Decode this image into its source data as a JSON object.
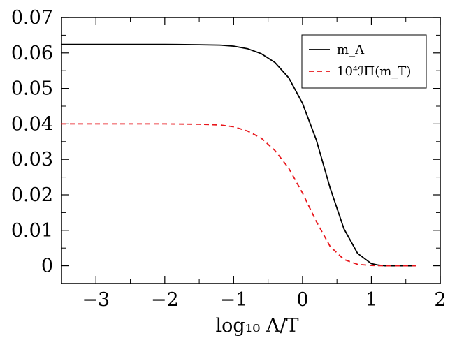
{
  "chart_data": {
    "type": "line",
    "xlabel": "log₁₀ Λ/T",
    "ylabel": "",
    "xlim": [
      -3.5,
      2
    ],
    "ylim": [
      -0.005,
      0.07
    ],
    "xticks": [
      -3,
      -2,
      -1,
      0,
      1,
      2
    ],
    "xtick_labels": [
      "−3",
      "−2",
      "−1",
      "0",
      "1",
      "2"
    ],
    "yticks": [
      0,
      0.01,
      0.02,
      0.03,
      0.04,
      0.05,
      0.06,
      0.07
    ],
    "ytick_labels": [
      "0",
      "0.01",
      "0.02",
      "0.03",
      "0.04",
      "0.05",
      "0.06",
      "0.07"
    ],
    "legend_position": "top-right",
    "series": [
      {
        "name": "m_Λ",
        "color": "#000000",
        "dash": "solid",
        "x": [
          -3.5,
          -3.0,
          -2.5,
          -2.0,
          -1.5,
          -1.2,
          -1.0,
          -0.8,
          -0.6,
          -0.4,
          -0.2,
          0.0,
          0.2,
          0.4,
          0.6,
          0.8,
          1.0,
          1.1,
          1.2,
          1.4,
          1.65
        ],
        "y": [
          0.0624,
          0.0624,
          0.0624,
          0.0624,
          0.0623,
          0.0622,
          0.0619,
          0.0612,
          0.0598,
          0.0573,
          0.053,
          0.0458,
          0.0355,
          0.022,
          0.0105,
          0.0035,
          0.0006,
          0.0002,
          0.0,
          0.0,
          0.0
        ]
      },
      {
        "name": "10⁴ℐΠ̄(m_T)",
        "color": "#e8171c",
        "dash": "dashed",
        "x": [
          -3.5,
          -3.0,
          -2.5,
          -2.0,
          -1.5,
          -1.2,
          -1.0,
          -0.8,
          -0.6,
          -0.4,
          -0.2,
          0.0,
          0.2,
          0.4,
          0.6,
          0.8,
          1.0,
          1.2,
          1.4,
          1.65
        ],
        "y": [
          0.04,
          0.04,
          0.04,
          0.04,
          0.0399,
          0.0397,
          0.0392,
          0.038,
          0.036,
          0.0325,
          0.0275,
          0.0205,
          0.0125,
          0.0055,
          0.0018,
          0.0004,
          0.0001,
          0.0,
          0.0,
          0.0
        ]
      }
    ]
  }
}
